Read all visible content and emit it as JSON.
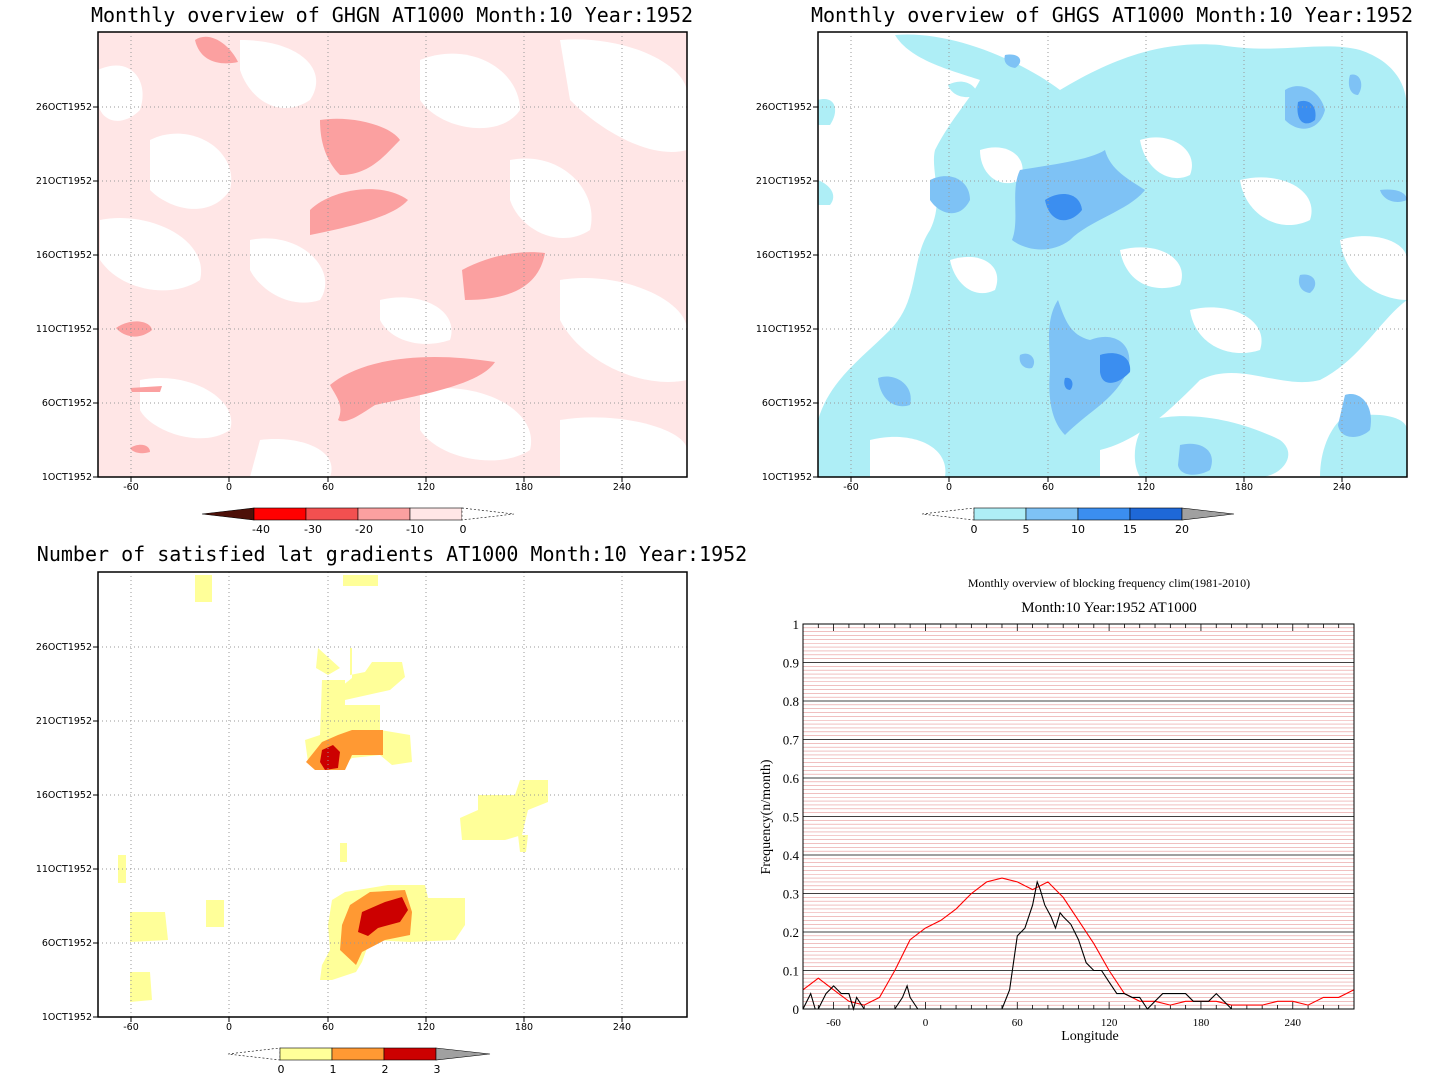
{
  "colors": {
    "ghgn": [
      "#4d1008",
      "#ff0000",
      "#f25050",
      "#fba0a0",
      "#ffe6e6"
    ],
    "ghgs": [
      "#aeeef6",
      "#7ec2f5",
      "#3b8ef0",
      "#1e68d8",
      "#a0a0a0"
    ],
    "gradients": [
      "#ffff99",
      "#ff9933",
      "#cc0000",
      "#a0a0a0"
    ],
    "clim_line": "#ff0000",
    "year_line": "#000000"
  },
  "chart_data": [
    {
      "type": "heatmap",
      "title": "Monthly overview of GHGN AT1000 Month:10 Year:1952",
      "x_ticks": [
        "-60",
        "0",
        "60",
        "120",
        "180",
        "240"
      ],
      "y_ticks": [
        "1OCT1952",
        "6OCT1952",
        "11OCT1952",
        "16OCT1952",
        "21OCT1952",
        "26OCT1952"
      ],
      "colorbar": {
        "labels": [
          "-40",
          "-30",
          "-20",
          "-10",
          "0"
        ]
      }
    },
    {
      "type": "heatmap",
      "title": "Monthly overview of GHGS AT1000 Month:10 Year:1952",
      "x_ticks": [
        "-60",
        "0",
        "60",
        "120",
        "180",
        "240"
      ],
      "y_ticks": [
        "1OCT1952",
        "6OCT1952",
        "11OCT1952",
        "16OCT1952",
        "21OCT1952",
        "26OCT1952"
      ],
      "colorbar": {
        "labels": [
          "0",
          "5",
          "10",
          "15",
          "20"
        ]
      }
    },
    {
      "type": "heatmap",
      "title": "Number of satisfied lat gradients AT1000 Month:10 Year:1952",
      "x_ticks": [
        "-60",
        "0",
        "60",
        "120",
        "180",
        "240"
      ],
      "y_ticks": [
        "1OCT1952",
        "6OCT1952",
        "11OCT1952",
        "16OCT1952",
        "21OCT1952",
        "26OCT1952"
      ],
      "colorbar": {
        "labels": [
          "0",
          "1",
          "2",
          "3"
        ]
      }
    },
    {
      "type": "line",
      "title": "Monthly overview of blocking frequency clim(1981-2010)",
      "subtitle": "Month:10 Year:1952  AT1000",
      "xlabel": "Longitude",
      "ylabel": "Frequency(n/month)",
      "x_ticks": [
        "-60",
        "0",
        "60",
        "120",
        "180",
        "240"
      ],
      "y_ticks": [
        "0",
        "0.1",
        "0.2",
        "0.3",
        "0.4",
        "0.5",
        "0.6",
        "0.7",
        "0.8",
        "0.9",
        "1"
      ],
      "xlim": [
        -80,
        280
      ],
      "ylim": [
        0,
        1
      ],
      "series": [
        {
          "key": "clim",
          "x": [
            -80,
            -70,
            -60,
            -50,
            -40,
            -30,
            -20,
            -10,
            0,
            10,
            20,
            30,
            40,
            50,
            60,
            70,
            80,
            90,
            100,
            110,
            120,
            130,
            140,
            150,
            160,
            170,
            180,
            190,
            200,
            210,
            220,
            230,
            240,
            250,
            260,
            270,
            280
          ],
          "y": [
            0.05,
            0.08,
            0.05,
            0.02,
            0.01,
            0.03,
            0.1,
            0.18,
            0.21,
            0.23,
            0.26,
            0.3,
            0.33,
            0.34,
            0.33,
            0.31,
            0.33,
            0.29,
            0.23,
            0.17,
            0.1,
            0.04,
            0.02,
            0.02,
            0.01,
            0.02,
            0.02,
            0.02,
            0.01,
            0.01,
            0.01,
            0.02,
            0.02,
            0.01,
            0.03,
            0.03,
            0.05
          ]
        },
        {
          "key": "year",
          "x": [
            -80,
            -75,
            -72,
            -70,
            -65,
            -60,
            -55,
            -50,
            -47,
            -45,
            -40,
            -30,
            -20,
            -15,
            -12,
            -10,
            -5,
            0,
            10,
            20,
            30,
            40,
            50,
            55,
            60,
            65,
            70,
            73,
            75,
            78,
            82,
            85,
            88,
            90,
            95,
            100,
            105,
            110,
            115,
            120,
            125,
            130,
            135,
            140,
            145,
            150,
            155,
            160,
            170,
            175,
            180,
            185,
            190,
            195,
            200,
            210,
            220,
            240,
            260,
            280
          ],
          "y": [
            0,
            0.04,
            0,
            0,
            0.04,
            0.06,
            0.04,
            0.04,
            0,
            0.03,
            0,
            0,
            0,
            0.03,
            0.06,
            0.03,
            0,
            0,
            0,
            0,
            0,
            0,
            0,
            0.05,
            0.19,
            0.21,
            0.27,
            0.33,
            0.31,
            0.27,
            0.24,
            0.21,
            0.25,
            0.24,
            0.22,
            0.18,
            0.12,
            0.1,
            0.1,
            0.07,
            0.04,
            0.04,
            0.03,
            0.03,
            0,
            0.02,
            0.04,
            0.04,
            0.04,
            0.02,
            0.02,
            0.02,
            0.04,
            0.02,
            0,
            0,
            0,
            0,
            0,
            0
          ]
        }
      ]
    }
  ]
}
